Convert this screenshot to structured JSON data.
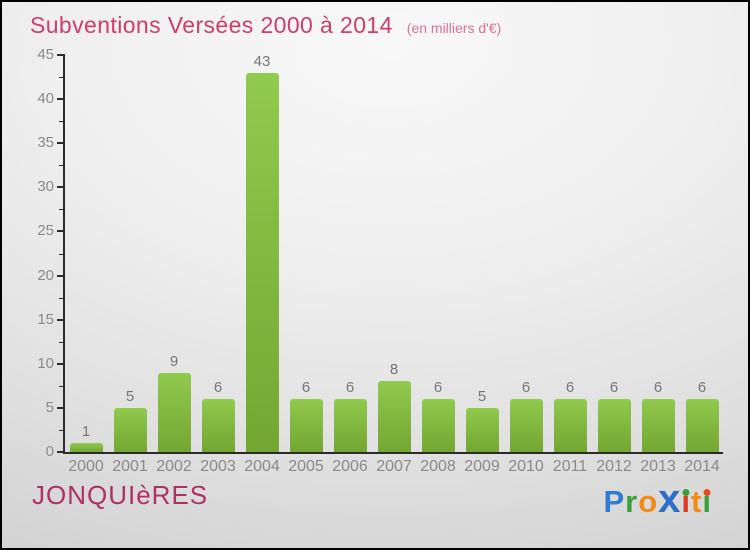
{
  "header": {
    "title": "Subventions Versées 2000 à 2014",
    "subtitle": "(en milliers d'€)"
  },
  "chart_data": {
    "type": "bar",
    "title": "Subventions Versées 2000 à 2014",
    "subtitle": "(en milliers d'€)",
    "categories": [
      "2000",
      "2001",
      "2002",
      "2003",
      "2004",
      "2005",
      "2006",
      "2007",
      "2008",
      "2009",
      "2010",
      "2011",
      "2012",
      "2013",
      "2014"
    ],
    "values": [
      1,
      5,
      9,
      6,
      43,
      6,
      6,
      8,
      6,
      5,
      6,
      6,
      6,
      6,
      6
    ],
    "xlabel": "",
    "ylabel": "",
    "ylim": [
      0,
      45
    ],
    "ytick_step": 5,
    "ytick_minor_step": 2.5,
    "grid": false,
    "legend": "none",
    "bar_color_top": "#90ca4e",
    "bar_color_bottom": "#73a732",
    "value_label_color": "#767676",
    "axis_color": "#2b2b2b",
    "tick_label_color": "#8a8a8a"
  },
  "footer": {
    "municipality": "JONQUIèRES",
    "logo": {
      "name": "Proxiti",
      "letters": [
        {
          "text": "P",
          "color": "#2e7cd6"
        },
        {
          "text": "r",
          "color": "#3aa03c"
        },
        {
          "text": "o",
          "color": "#f28a16"
        },
        {
          "text": "x",
          "color": "#2b6fc9",
          "big": true
        },
        {
          "text": "ı",
          "color": "#e0391f",
          "dot": "#3aa03c"
        },
        {
          "text": "t",
          "color": "#f28a16"
        },
        {
          "text": "ı",
          "color": "#3aa03c",
          "dot": "#e8491f"
        }
      ]
    }
  },
  "colors": {
    "title": "#d23c6a",
    "subtitle": "#dd7099",
    "municipality": "#b13064",
    "background_top": "#f8f8f8",
    "background_bottom": "#cccccc",
    "border": "#000000"
  }
}
